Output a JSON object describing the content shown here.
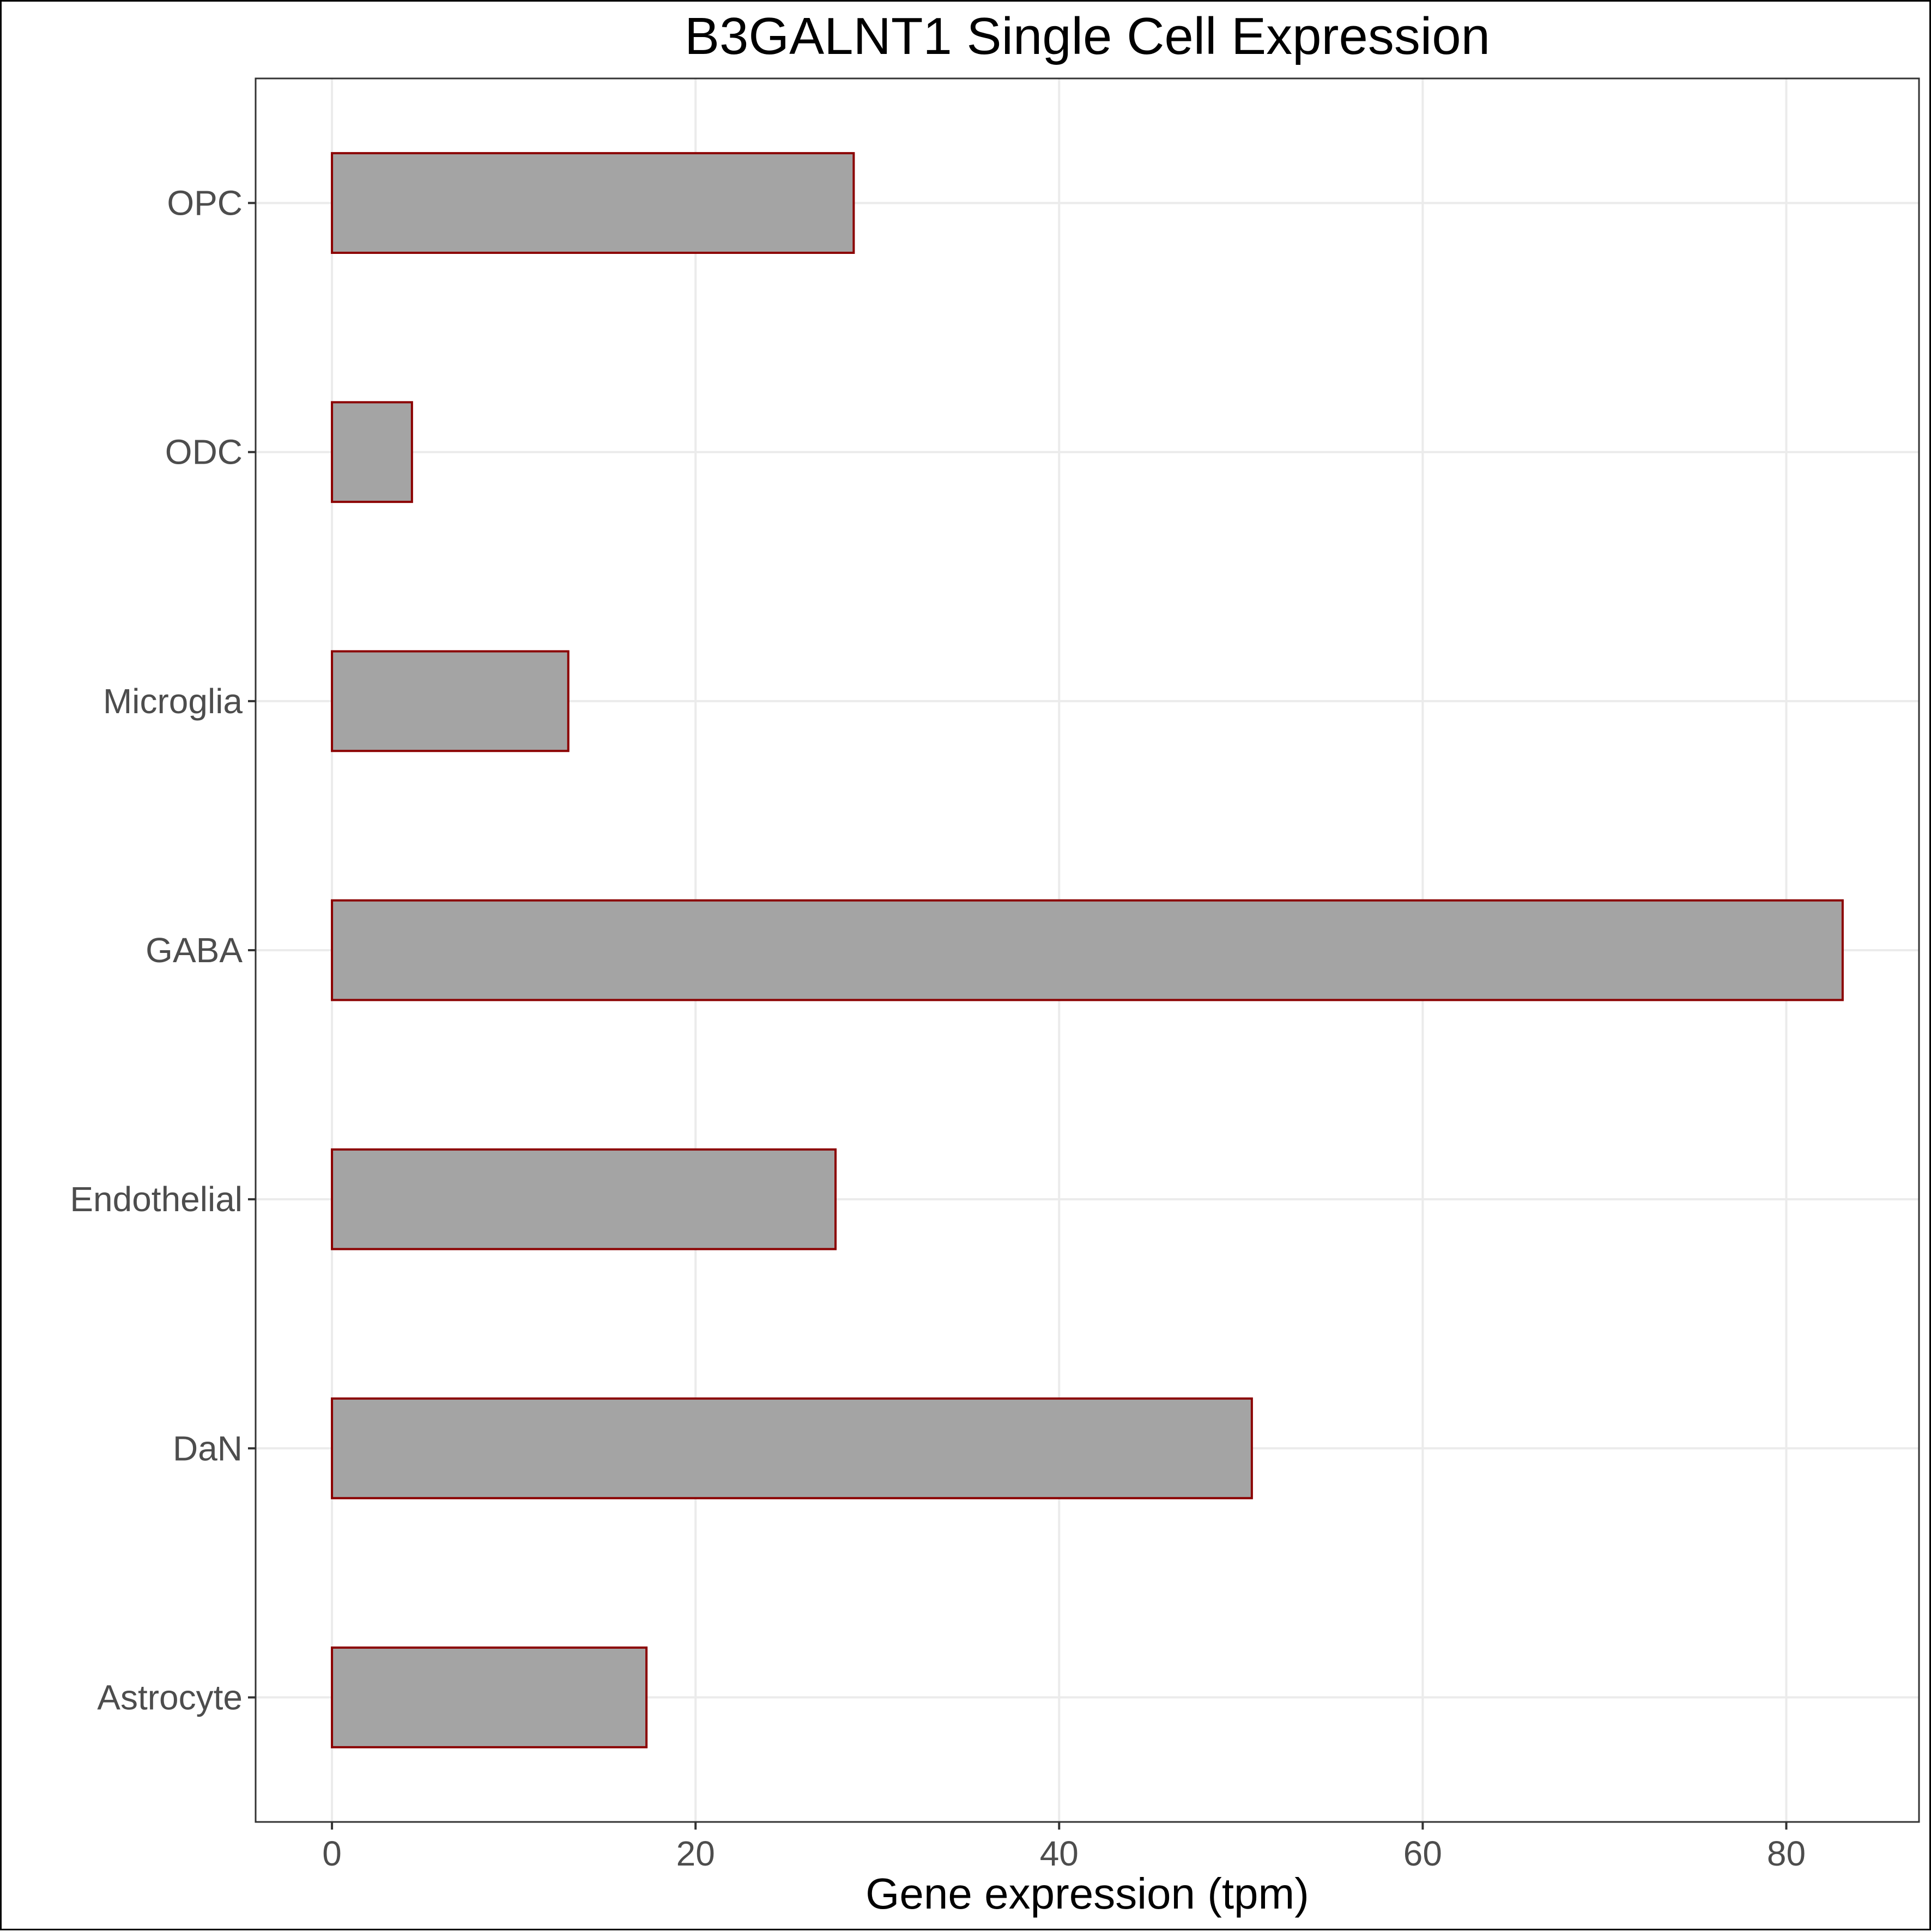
{
  "chart_data": {
    "type": "bar",
    "orientation": "horizontal",
    "title": "B3GALNT1 Single Cell Expression",
    "xlabel": "Gene expression (tpm)",
    "ylabel": "",
    "categories": [
      "OPC",
      "ODC",
      "Microglia",
      "GABA",
      "Endothelial",
      "DaN",
      "Astrocyte"
    ],
    "values": [
      28.7,
      4.4,
      13.0,
      83.1,
      27.7,
      50.6,
      17.3
    ],
    "xlim": [
      -4.2,
      87.3
    ],
    "xticks": [
      0,
      20,
      40,
      60,
      80
    ],
    "grid": true,
    "legend": "none",
    "bar_fill": "#a4a4a4",
    "bar_outline": "#8b0000"
  }
}
